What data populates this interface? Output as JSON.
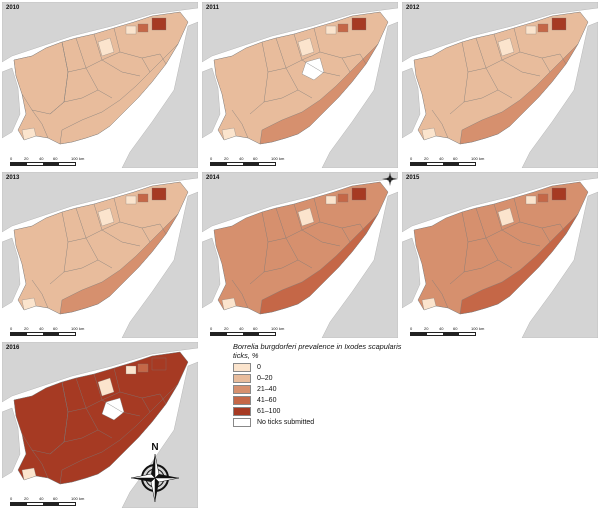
{
  "colors": {
    "bg": "#d4d4d4",
    "border": "#7a7a7a",
    "c0": "#fbe4cd",
    "c1": "#e8bc9c",
    "c2": "#d6906e",
    "c3": "#c56747",
    "c4": "#a63a23",
    "none": "#ffffff"
  },
  "panels": [
    {
      "year": "2010",
      "fill": "c1",
      "coast": "c1"
    },
    {
      "year": "2011",
      "fill": "c1",
      "coast": "c2"
    },
    {
      "year": "2012",
      "fill": "c1",
      "coast": "c2"
    },
    {
      "year": "2013",
      "fill": "c1",
      "coast": "c2"
    },
    {
      "year": "2014",
      "fill": "c2",
      "coast": "c3"
    },
    {
      "year": "2015",
      "fill": "c2",
      "coast": "c3"
    },
    {
      "year": "2016",
      "fill": "c4",
      "coast": "c4"
    }
  ],
  "scale": {
    "ticks": [
      "0",
      "20",
      "40",
      "60",
      "100"
    ],
    "unit": "km"
  },
  "legend": {
    "title_genus": "Borrelia burgdorferi",
    "title_mid": " prevalence in ",
    "title_tick": "Ixodes scapularis",
    "title_end": " ticks, %",
    "items": [
      {
        "label": "0",
        "color": "#fbe4cd"
      },
      {
        "label": "0–20",
        "color": "#e8bc9c"
      },
      {
        "label": "21–40",
        "color": "#d6906e"
      },
      {
        "label": "41–60",
        "color": "#c56747"
      },
      {
        "label": "61–100",
        "color": "#a63a23"
      },
      {
        "label": "No ticks submitted",
        "color": "#ffffff"
      }
    ]
  },
  "compass": {
    "north": "N"
  }
}
